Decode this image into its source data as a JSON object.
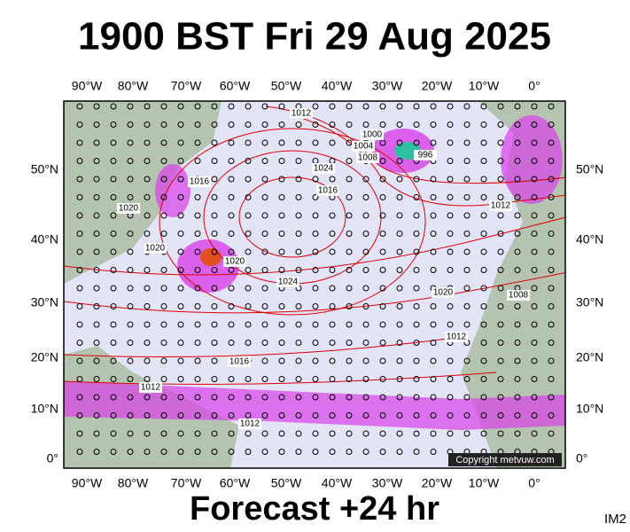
{
  "header": {
    "title": "1900 BST Fri 29 Aug 2025"
  },
  "footer": {
    "subtitle": "Forecast +24 hr",
    "corner_label": "IM2"
  },
  "map": {
    "lon_labels": [
      "90°W",
      "80°W",
      "70°W",
      "60°W",
      "50°W",
      "40°W",
      "30°W",
      "20°W",
      "10°W",
      "0°"
    ],
    "lat_labels": [
      "50°N",
      "40°N",
      "30°N",
      "20°N",
      "10°N",
      "0°"
    ],
    "copyright": "Copyright metvuw.com",
    "isobar_labels": [
      "1012",
      "1000",
      "1004",
      "1008",
      "996",
      "1016",
      "1020",
      "1024",
      "1016",
      "1020",
      "1020",
      "1024",
      "1020",
      "1008",
      "1012",
      "1016",
      "1012",
      "1012",
      "1012"
    ]
  }
}
